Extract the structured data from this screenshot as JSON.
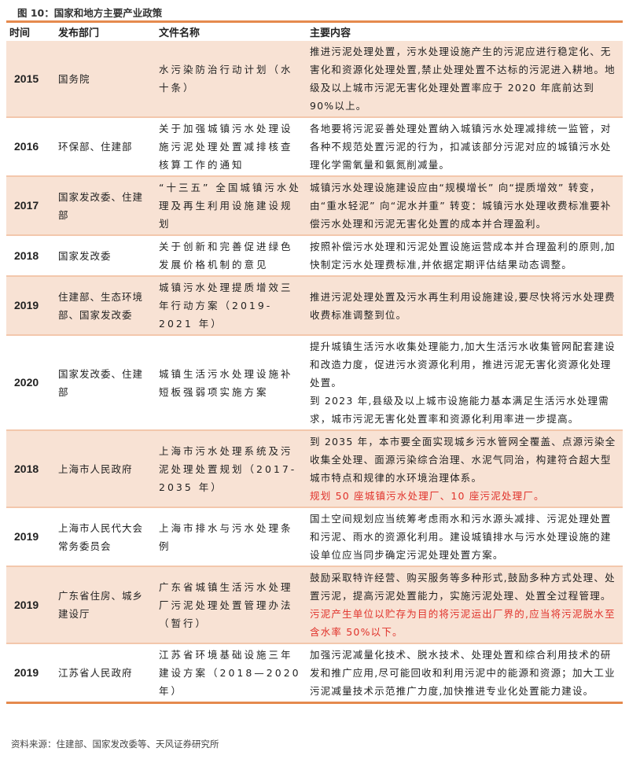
{
  "title": "图 10：国家和地方主要产业政策",
  "headers": [
    "时间",
    "发布部门",
    "文件名称",
    "主要内容"
  ],
  "rows": [
    {
      "year": "2015",
      "dept": "国务院",
      "doc": "水污染防治行动计划（水十条）",
      "content": [
        {
          "text": "推进污泥处理处置，污水处理设施产生的污泥应进行稳定化、无害化和资源化处理处置,禁止处理处置不达标的污泥进入耕地。地级及以上城市污泥无害化处理处置率应于 2020 年底前达到 90%以上。",
          "red": false
        }
      ]
    },
    {
      "year": "2016",
      "dept": "环保部、住建部",
      "doc": "关于加强城镇污水处理设施污泥处理处置减排核查核算工作的通知",
      "content": [
        {
          "text": "各地要将污泥妥善处理处置纳入城镇污水处理减排统一监管，对各种不规范处置污泥的行为，扣减该部分污泥对应的城镇污水处理化学需氧量和氨氮削减量。",
          "red": false
        }
      ]
    },
    {
      "year": "2017",
      "dept": "国家发改委、住建部",
      "doc": "“十三五” 全国城镇污水处理及再生利用设施建设规划",
      "content": [
        {
          "text": "城镇污水处理设施建设应由“规模增长” 向“提质增效” 转变，由“重水轻泥” 向“泥水并重” 转变：城镇污水处理收费标准要补偿污水处理和污泥无害化处置的成本并合理盈利。",
          "red": false
        }
      ]
    },
    {
      "year": "2018",
      "dept": "国家发改委",
      "doc": "关于创新和完善促进绿色发展价格机制的意见",
      "content": [
        {
          "text": "按照补偿污水处理和污泥处置设施运营成本并合理盈利的原则,加快制定污水处理费标准,并依据定期评估结果动态调整。",
          "red": false
        }
      ]
    },
    {
      "year": "2019",
      "dept": "住建部、生态环境部、国家发改委",
      "doc": "城镇污水处理提质增效三年行动方案（2019-2021 年）",
      "content": [
        {
          "text": "推进污泥处理处置及污水再生利用设施建设,要尽快将污水处理费收费标准调整到位。",
          "red": false
        }
      ]
    },
    {
      "year": "2020",
      "dept": "国家发改委、住建部",
      "doc": "城镇生活污水处理设施补短板强弱项实施方案",
      "content": [
        {
          "text": "提升城镇生活污水收集处理能力,加大生活污水收集管网配套建设和改造力度，促进污水资源化利用，推进污泥无害化资源化处理处置。",
          "red": false
        },
        {
          "text": "到 2023 年,县级及以上城市设施能力基本满足生活污水处理需求，城市污泥无害化处置率和资源化利用率进一步提高。",
          "red": false
        }
      ]
    },
    {
      "year": "2018",
      "dept": "上海市人民政府",
      "doc": "上海市污水处理系统及污泥处理处置规划（2017-2035 年）",
      "content": [
        {
          "text": "到 2035 年，本市要全面实现城乡污水管网全覆盖、点源污染全收集全处理、面源污染综合治理、水泥气同治，构建符合超大型城市特点和规律的水环境治理体系。",
          "red": false
        },
        {
          "text": "规划 50 座城镇污水处理厂、10 座污泥处理厂。",
          "red": true
        }
      ]
    },
    {
      "year": "2019",
      "dept": "上海市人民代大会常务委员会",
      "doc": "上海市排水与污水处理条例",
      "content": [
        {
          "text": "国土空间规划应当统筹考虑雨水和污水源头减排、污泥处理处置和污泥、雨水的资源化利用。建设城镇排水与污水处理设施的建设单位应当同步确定污泥处理处置方案。",
          "red": false
        }
      ]
    },
    {
      "year": "2019",
      "dept": "广东省住房、城乡建设厅",
      "doc": "广东省城镇生活污水处理厂污泥处理处置管理办法（暂行）",
      "content": [
        {
          "text": "鼓励采取特许经营、购买服务等多种形式,鼓励多种方式处理、处置污泥，提高污泥处置能力，实施污泥处理、处置全过程管理。",
          "red": false
        },
        {
          "text": "污泥产生单位以贮存为目的将污泥运出厂界的,应当将污泥脱水至含水率 50%以下。",
          "red": true
        }
      ]
    },
    {
      "year": "2019",
      "dept": "江苏省人民政府",
      "doc": "江苏省环境基础设施三年建设方案（2018—2020 年）",
      "content": [
        {
          "text": "加强污泥减量化技术、脱水技术、处理处置和综合利用技术的研发和推广应用,尽可能回收和利用污泥中的能源和资源；加大工业污泥减量技术示范推广力度,加快推进专业化处置能力建设。",
          "red": false
        }
      ]
    }
  ],
  "source": "资料来源：住建部、国家发改委等、天风证券研究所",
  "colors": {
    "accent": "#e58a4e",
    "tint": "#f8e2d4",
    "highlight": "#e0312a"
  }
}
